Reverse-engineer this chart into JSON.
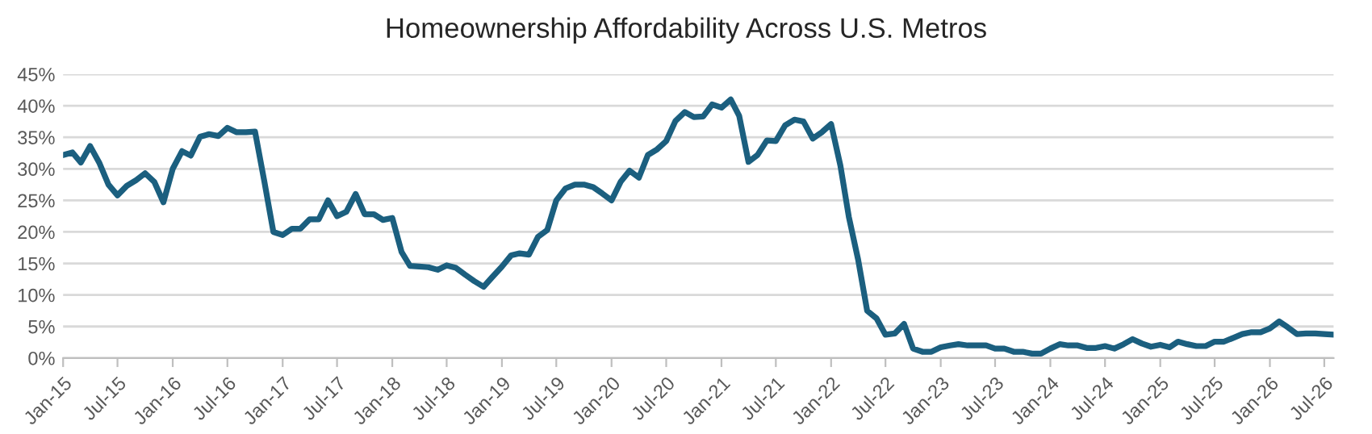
{
  "chart_data": {
    "type": "line",
    "title": "Homeownership Affordability Across U.S. Metros",
    "x": [
      "2015-01",
      "2015-02",
      "2015-03",
      "2015-04",
      "2015-05",
      "2015-06",
      "2015-07",
      "2015-08",
      "2015-09",
      "2015-10",
      "2015-11",
      "2015-12",
      "2016-01",
      "2016-02",
      "2016-03",
      "2016-04",
      "2016-05",
      "2016-06",
      "2016-07",
      "2016-08",
      "2016-09",
      "2016-10",
      "2016-11",
      "2016-12",
      "2017-01",
      "2017-02",
      "2017-03",
      "2017-04",
      "2017-05",
      "2017-06",
      "2017-07",
      "2017-08",
      "2017-09",
      "2017-10",
      "2017-11",
      "2017-12",
      "2018-01",
      "2018-02",
      "2018-03",
      "2018-04",
      "2018-05",
      "2018-06",
      "2018-07",
      "2018-08",
      "2018-09",
      "2018-10",
      "2018-11",
      "2018-12",
      "2019-01",
      "2019-02",
      "2019-03",
      "2019-04",
      "2019-05",
      "2019-06",
      "2019-07",
      "2019-08",
      "2019-09",
      "2019-10",
      "2019-11",
      "2019-12",
      "2020-01",
      "2020-02",
      "2020-03",
      "2020-04",
      "2020-05",
      "2020-06",
      "2020-07",
      "2020-08",
      "2020-09",
      "2020-10",
      "2020-11",
      "2020-12",
      "2021-01",
      "2021-02",
      "2021-03",
      "2021-04",
      "2021-05",
      "2021-06",
      "2021-07",
      "2021-08",
      "2021-09",
      "2021-10",
      "2021-11",
      "2021-12",
      "2022-01",
      "2022-02",
      "2022-03",
      "2022-04",
      "2022-05",
      "2022-06",
      "2022-07",
      "2022-08",
      "2022-09",
      "2022-10",
      "2022-11",
      "2022-12",
      "2023-01",
      "2023-02",
      "2023-03",
      "2023-04",
      "2023-05",
      "2023-06",
      "2023-07",
      "2023-08",
      "2023-09",
      "2023-10",
      "2023-11",
      "2023-12",
      "2024-01",
      "2024-02",
      "2024-03",
      "2024-04",
      "2024-05",
      "2024-06",
      "2024-07",
      "2024-08",
      "2024-09",
      "2024-10",
      "2024-11",
      "2024-12",
      "2025-01",
      "2025-02",
      "2025-03",
      "2025-04",
      "2025-05",
      "2025-06",
      "2025-07",
      "2025-08",
      "2025-09",
      "2025-10",
      "2025-11",
      "2025-12",
      "2026-01",
      "2026-02",
      "2026-03",
      "2026-04",
      "2026-05",
      "2026-06",
      "2026-07",
      "2026-08"
    ],
    "series": [
      {
        "color": "#1b5f7f",
        "values": [
          32.2,
          32.6,
          31.0,
          33.6,
          31.0,
          27.5,
          25.8,
          27.3,
          28.2,
          29.3,
          27.9,
          24.7,
          30.0,
          32.8,
          32.1,
          35.1,
          35.5,
          35.2,
          36.5,
          35.8,
          35.8,
          35.9,
          28.0,
          20.0,
          19.5,
          20.5,
          20.5,
          22.0,
          22.0,
          25.0,
          22.5,
          23.2,
          26.0,
          22.8,
          22.8,
          21.9,
          22.2,
          16.8,
          14.6,
          14.5,
          14.4,
          14.0,
          14.7,
          14.3,
          13.2,
          12.2,
          11.3,
          12.9,
          14.5,
          16.3,
          16.6,
          16.4,
          19.2,
          20.3,
          25.0,
          26.9,
          27.5,
          27.5,
          27.1,
          26.1,
          25.0,
          28.0,
          29.7,
          28.6,
          32.2,
          33.1,
          34.4,
          37.6,
          39.0,
          38.2,
          38.3,
          40.2,
          39.7,
          41.0,
          38.4,
          31.1,
          32.2,
          34.5,
          34.4,
          36.9,
          37.8,
          37.5,
          34.8,
          35.8,
          37.1,
          30.5,
          22.4,
          15.6,
          7.5,
          6.3,
          3.7,
          3.9,
          5.4,
          1.5,
          1.0,
          1.0,
          1.7,
          2.0,
          2.2,
          2.0,
          2.0,
          2.0,
          1.5,
          1.5,
          1.0,
          1.0,
          0.7,
          0.7,
          1.5,
          2.2,
          2.0,
          2.0,
          1.6,
          1.6,
          1.9,
          1.5,
          2.2,
          3.0,
          2.3,
          1.8,
          2.1,
          1.7,
          2.6,
          2.2,
          1.9,
          1.9,
          2.6,
          2.6,
          3.2,
          3.8,
          4.1,
          4.1,
          4.7,
          5.8,
          4.9,
          3.8,
          3.9,
          3.9,
          3.8,
          3.7
        ]
      }
    ],
    "xlim": [
      "2015-01",
      "2026-08"
    ],
    "xticks": [
      {
        "value": "2015-01",
        "label": "Jan-15"
      },
      {
        "value": "2015-07",
        "label": "Jul-15"
      },
      {
        "value": "2016-01",
        "label": "Jan-16"
      },
      {
        "value": "2016-07",
        "label": "Jul-16"
      },
      {
        "value": "2017-01",
        "label": "Jan-17"
      },
      {
        "value": "2017-07",
        "label": "Jul-17"
      },
      {
        "value": "2018-01",
        "label": "Jan-18"
      },
      {
        "value": "2018-07",
        "label": "Jul-18"
      },
      {
        "value": "2019-01",
        "label": "Jan-19"
      },
      {
        "value": "2019-07",
        "label": "Jul-19"
      },
      {
        "value": "2020-01",
        "label": "Jan-20"
      },
      {
        "value": "2020-07",
        "label": "Jul-20"
      },
      {
        "value": "2021-01",
        "label": "Jan-21"
      },
      {
        "value": "2021-07",
        "label": "Jul-21"
      },
      {
        "value": "2022-01",
        "label": "Jan-22"
      },
      {
        "value": "2022-07",
        "label": "Jul-22"
      },
      {
        "value": "2023-01",
        "label": "Jan-23"
      },
      {
        "value": "2023-07",
        "label": "Jul-23"
      },
      {
        "value": "2024-01",
        "label": "Jan-24"
      },
      {
        "value": "2024-07",
        "label": "Jul-24"
      },
      {
        "value": "2025-01",
        "label": "Jan-25"
      },
      {
        "value": "2025-07",
        "label": "Jul-25"
      },
      {
        "value": "2026-01",
        "label": "Jan-26"
      },
      {
        "value": "2026-07",
        "label": "Jul-26"
      }
    ],
    "ylim": [
      0,
      45
    ],
    "yticks": [
      {
        "value": 0,
        "label": "0%"
      },
      {
        "value": 5,
        "label": "5%"
      },
      {
        "value": 10,
        "label": "10%"
      },
      {
        "value": 15,
        "label": "15%"
      },
      {
        "value": 20,
        "label": "20%"
      },
      {
        "value": 25,
        "label": "25%"
      },
      {
        "value": 30,
        "label": "30%"
      },
      {
        "value": 35,
        "label": "35%"
      },
      {
        "value": 40,
        "label": "40%"
      },
      {
        "value": 45,
        "label": "45%"
      }
    ],
    "grid": "y",
    "legend": false,
    "marker": "none",
    "line_style": "solid"
  }
}
